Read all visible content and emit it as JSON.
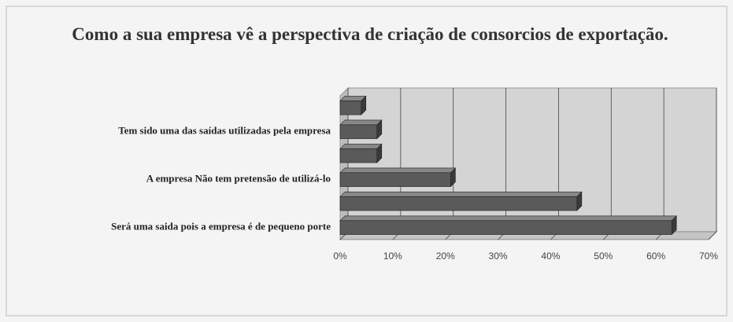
{
  "chart_data": {
    "type": "bar",
    "orientation": "horizontal",
    "title": "Como a sua empresa vê a perspectiva de criação de consorcios de exportação.",
    "categories": [
      null,
      "Tem sido uma das saídas utilizadas pela empresa",
      null,
      "A empresa Não tem pretensão de utilizá-lo",
      null,
      "Será uma saida pois a empresa é de pequeno porte"
    ],
    "values": [
      4,
      7,
      7,
      21,
      45,
      63
    ],
    "color": "#5a5a5a",
    "xlim": [
      0,
      70
    ],
    "xticks": [
      {
        "value": 0,
        "label": "0%"
      },
      {
        "value": 10,
        "label": "10%"
      },
      {
        "value": 20,
        "label": "20%"
      },
      {
        "value": 30,
        "label": "30%"
      },
      {
        "value": 40,
        "label": "40%"
      },
      {
        "value": 50,
        "label": "50%"
      },
      {
        "value": 60,
        "label": "60%"
      },
      {
        "value": 70,
        "label": "70%"
      }
    ],
    "grid": true
  }
}
